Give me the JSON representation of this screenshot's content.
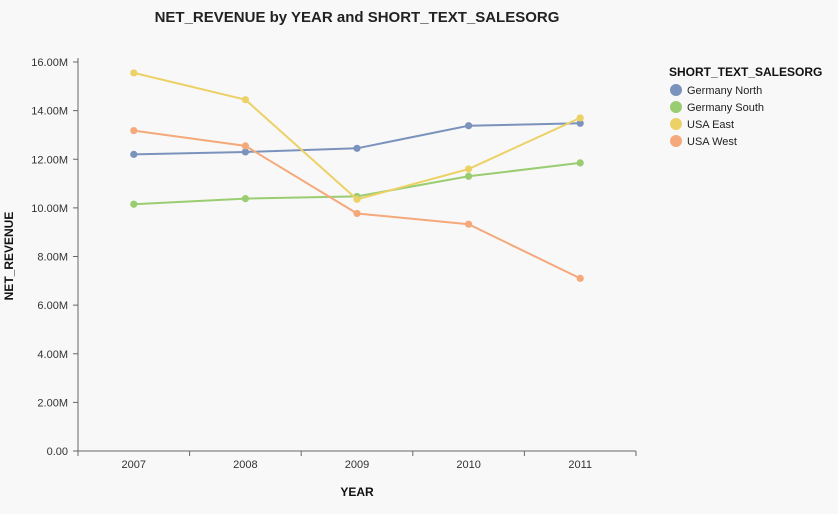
{
  "chart_data": {
    "type": "line",
    "title": "NET_REVENUE by YEAR and SHORT_TEXT_SALESORG",
    "xlabel": "YEAR",
    "ylabel": "NET_REVENUE",
    "categories": [
      "2007",
      "2008",
      "2009",
      "2010",
      "2011"
    ],
    "ylim": [
      0,
      16000000
    ],
    "yticks": [
      {
        "value": 0,
        "label": "0.00"
      },
      {
        "value": 2000000,
        "label": "2.00M"
      },
      {
        "value": 4000000,
        "label": "4.00M"
      },
      {
        "value": 6000000,
        "label": "6.00M"
      },
      {
        "value": 8000000,
        "label": "8.00M"
      },
      {
        "value": 10000000,
        "label": "10.00M"
      },
      {
        "value": 12000000,
        "label": "12.00M"
      },
      {
        "value": 14000000,
        "label": "14.00M"
      },
      {
        "value": 16000000,
        "label": "16.00M"
      }
    ],
    "legend_title": "SHORT_TEXT_SALESORG",
    "legend_position": "top-right",
    "grid": false,
    "series": [
      {
        "name": "Germany North",
        "color": "#7b93bc",
        "values": [
          12200000,
          12300000,
          12450000,
          13380000,
          13480000
        ]
      },
      {
        "name": "Germany South",
        "color": "#9acd72",
        "values": [
          10150000,
          10380000,
          10470000,
          11300000,
          11850000
        ]
      },
      {
        "name": "USA East",
        "color": "#ecd166",
        "values": [
          15550000,
          14450000,
          10350000,
          11600000,
          13700000
        ]
      },
      {
        "name": "USA West",
        "color": "#f5a97a",
        "values": [
          13180000,
          12550000,
          9770000,
          9330000,
          7100000
        ]
      }
    ]
  }
}
